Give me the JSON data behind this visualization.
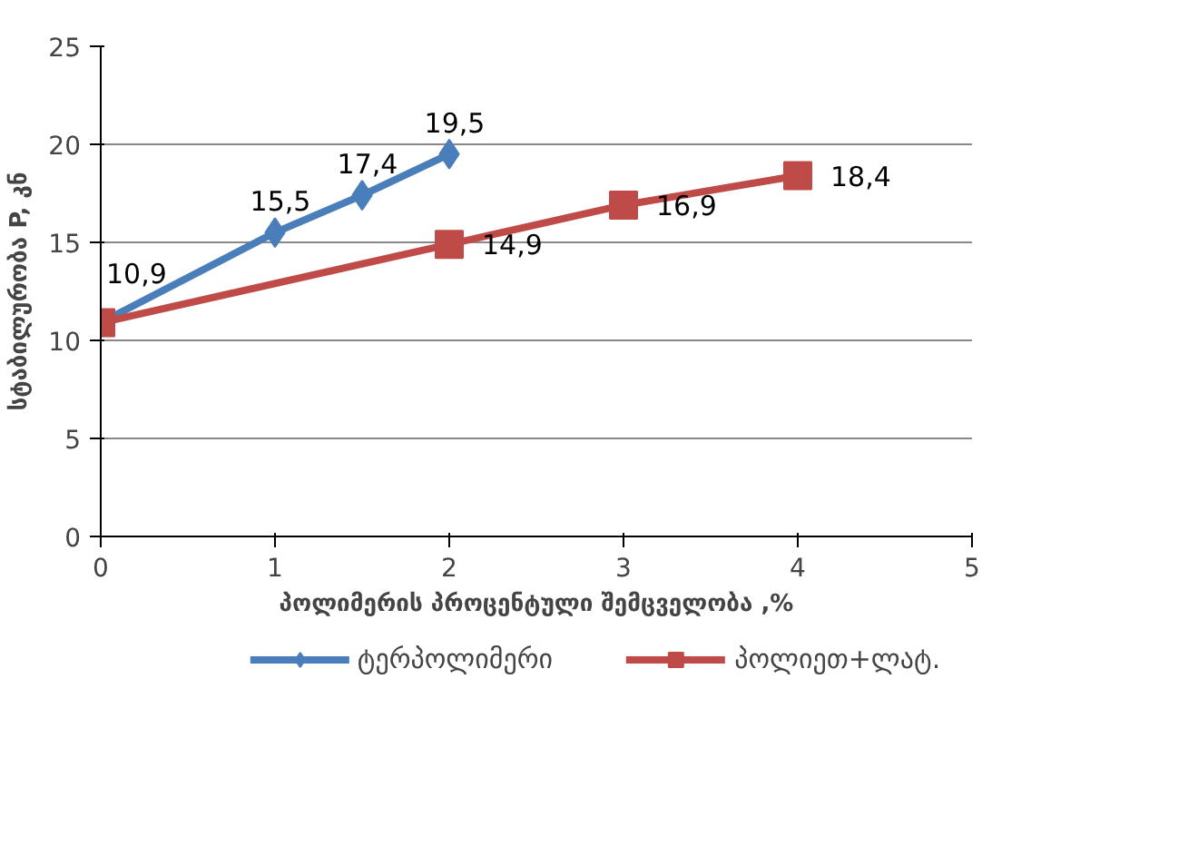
{
  "chart_data": {
    "type": "line",
    "xlabel": "პოლიმერის პროცენტული შემცველობა ,%",
    "ylabel": "სტაბილურობა P, კნ",
    "xlim": [
      0,
      5
    ],
    "xticks": [
      0,
      1,
      2,
      3,
      4,
      5
    ],
    "ylim": [
      0,
      25
    ],
    "yticks": [
      0,
      5,
      10,
      15,
      20,
      25
    ],
    "grid": "y",
    "legend": "bottom",
    "series": [
      {
        "name": "ტერპოლიმერი",
        "color": "#4a7ebb",
        "marker": "diamond",
        "x": [
          0,
          1,
          1.5,
          2
        ],
        "values": [
          10.9,
          15.5,
          17.4,
          19.5
        ],
        "value_labels": [
          "10,9",
          "15,5",
          "17,4",
          "19,5"
        ]
      },
      {
        "name": "პოლიეთ+ლატ.",
        "color": "#be4b48",
        "marker": "square",
        "x": [
          0,
          2,
          3,
          4
        ],
        "values": [
          10.9,
          14.9,
          16.9,
          18.4
        ],
        "value_labels": [
          null,
          "14,9",
          "16,9",
          "18,4"
        ]
      }
    ]
  }
}
